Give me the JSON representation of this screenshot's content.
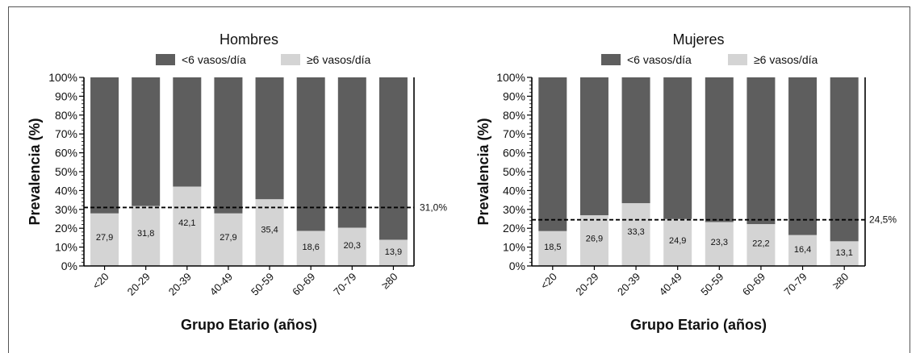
{
  "chart_data": [
    {
      "type": "bar",
      "stacked": true,
      "title": "Hombres",
      "xlabel": "Grupo Etario (años)",
      "ylabel": "Prevalencia (%)",
      "ylim": [
        0,
        100
      ],
      "yticks": [
        "0%",
        "10%",
        "20%",
        "30%",
        "40%",
        "50%",
        "60%",
        "70%",
        "80%",
        "90%",
        "100%"
      ],
      "categories": [
        "<20",
        "20-29",
        "20-39",
        "40-49",
        "50-59",
        "60-69",
        "70-79",
        "≥80"
      ],
      "series": [
        {
          "name": "<6 vasos/día",
          "values": [
            72.1,
            68.2,
            57.9,
            72.1,
            64.6,
            81.4,
            79.7,
            86.1
          ],
          "color": "#5e5e5e"
        },
        {
          "name": "≥6 vasos/día",
          "values": [
            27.9,
            31.8,
            42.1,
            27.9,
            35.4,
            18.6,
            20.3,
            13.9
          ],
          "color": "#d4d4d4"
        }
      ],
      "data_labels": [
        "27,9",
        "31,8",
        "42,1",
        "27,9",
        "35,4",
        "18,6",
        "20,3",
        "13,9"
      ],
      "reference_line": {
        "value": 31.0,
        "label": "31,0%",
        "style": "dashed"
      },
      "legend_position": "top-center",
      "grid": false
    },
    {
      "type": "bar",
      "stacked": true,
      "title": "Mujeres",
      "xlabel": "Grupo Etario (años)",
      "ylabel": "Prevalencia (%)",
      "ylim": [
        0,
        100
      ],
      "yticks": [
        "0%",
        "10%",
        "20%",
        "30%",
        "40%",
        "50%",
        "60%",
        "70%",
        "80%",
        "90%",
        "100%"
      ],
      "categories": [
        "<20",
        "20-29",
        "20-39",
        "40-49",
        "50-59",
        "60-69",
        "70-79",
        "≥80"
      ],
      "series": [
        {
          "name": "<6 vasos/día",
          "values": [
            81.5,
            73.1,
            66.7,
            75.1,
            76.7,
            77.8,
            83.6,
            86.9
          ],
          "color": "#5e5e5e"
        },
        {
          "name": "≥6 vasos/día",
          "values": [
            18.5,
            26.9,
            33.3,
            24.9,
            23.3,
            22.2,
            16.4,
            13.1
          ],
          "color": "#d4d4d4"
        }
      ],
      "data_labels": [
        "18,5",
        "26,9",
        "33,3",
        "24,9",
        "23,3",
        "22,2",
        "16,4",
        "13,1"
      ],
      "reference_line": {
        "value": 24.5,
        "label": "24,5%",
        "style": "dashed"
      },
      "legend_position": "top-center",
      "grid": false
    }
  ]
}
